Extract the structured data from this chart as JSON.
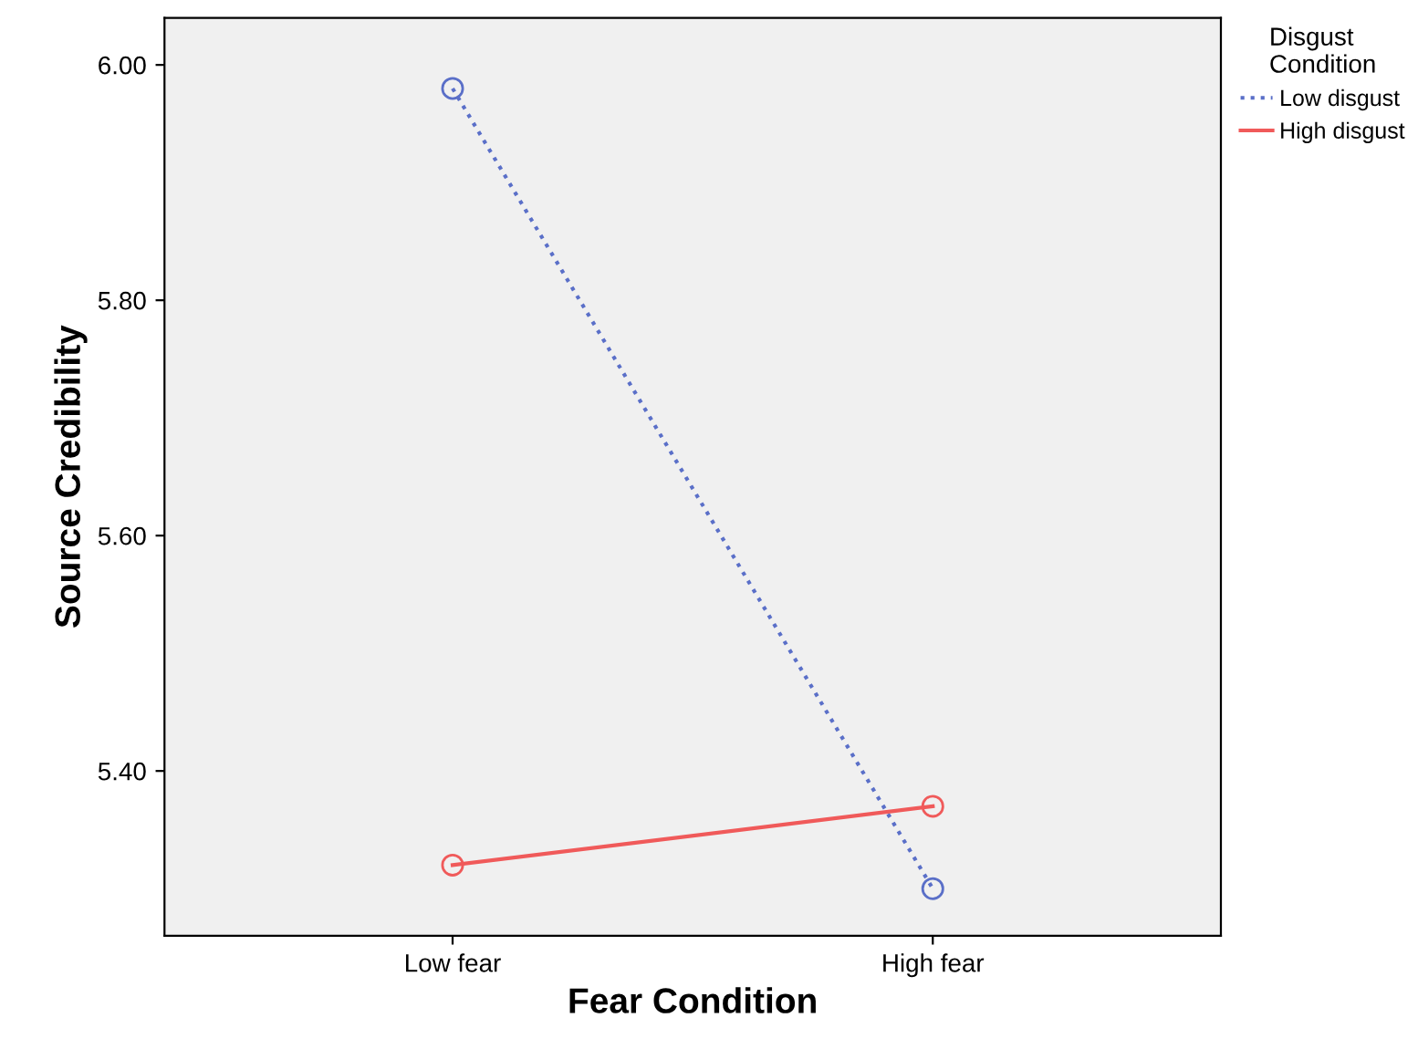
{
  "chart_data": {
    "type": "line",
    "xlabel": "Fear Condition",
    "ylabel": "Source Credibility",
    "legend_title": "Disgust\nCondition",
    "categories": [
      "Low fear",
      "High fear"
    ],
    "series": [
      {
        "name": "Low disgust",
        "color": "#5a6fc8",
        "values": [
          5.98,
          5.3
        ],
        "line_style": "dotted"
      },
      {
        "name": "High disgust",
        "color": "#f05a5a",
        "values": [
          5.32,
          5.37
        ],
        "line_style": "solid"
      }
    ],
    "marker": "circle",
    "ylim": [
      5.26,
      6.04
    ],
    "yticks": [
      {
        "value": 5.4,
        "label": "5.40"
      },
      {
        "value": 5.6,
        "label": "5.60"
      },
      {
        "value": 5.8,
        "label": "5.80"
      },
      {
        "value": 6.0,
        "label": "6.00"
      }
    ],
    "grid": false,
    "legend": "top right"
  }
}
